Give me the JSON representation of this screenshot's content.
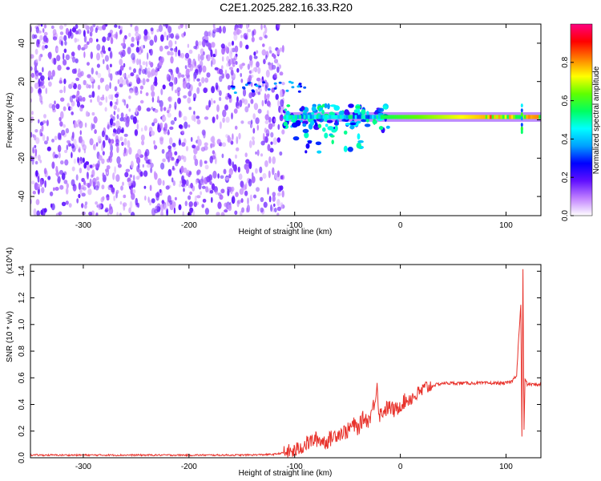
{
  "title": "C2E1.2025.282.16.33.R20",
  "chart_data": [
    {
      "type": "heatmap",
      "xlabel": "Height of straight line (km)",
      "ylabel": "Frequency (Hz)",
      "xlim": [
        -350,
        133
      ],
      "ylim": [
        -50,
        50
      ],
      "xticks": [
        -300,
        -200,
        -100,
        0,
        100
      ],
      "yticks": [
        -40,
        -20,
        0,
        20,
        40
      ],
      "colorbar": {
        "label": "Normalized spectral amplitude",
        "range": [
          0,
          1
        ],
        "ticks": [
          "0.0",
          "0.2",
          "0.4",
          "0.6",
          "0.8"
        ],
        "colors": [
          "#ffffff",
          "#c080ff",
          "#6010ff",
          "#0000ff",
          "#00a0ff",
          "#00ffff",
          "#00ff60",
          "#60ff00",
          "#ffff00",
          "#ff8000",
          "#ff0000",
          "#ff0080"
        ]
      },
      "features": {
        "noise_region_x": [
          -350,
          -110
        ],
        "noise_level": 0.15,
        "line_x": [
          -110,
          133
        ],
        "line_frequency": 1.5,
        "line_peak_amplitude": 0.9,
        "disturbance_x": [
          -80,
          -20
        ],
        "spike_x": 115
      }
    },
    {
      "type": "line",
      "xlabel": "Height of straight line (km)",
      "ylabel": "SNR (10 * v/v)",
      "yunit": "(x10^4)",
      "xlim": [
        -350,
        133
      ],
      "ylim": [
        0,
        1.45
      ],
      "xticks": [
        -300,
        -200,
        -100,
        0,
        100
      ],
      "yticks": [
        0.0,
        0.2,
        0.4,
        0.6,
        0.8,
        1.0,
        1.2,
        1.4
      ],
      "series": [
        {
          "color": "#e8312a",
          "x": [
            -350,
            -300,
            -250,
            -200,
            -150,
            -120,
            -100,
            -90,
            -80,
            -70,
            -60,
            -50,
            -45,
            -40,
            -35,
            -30,
            -25,
            -22,
            -20,
            -15,
            -10,
            -5,
            0,
            5,
            10,
            15,
            20,
            25,
            30,
            35,
            40,
            50,
            60,
            70,
            80,
            90,
            100,
            105,
            108,
            110,
            112,
            114,
            115,
            116,
            117,
            118,
            120,
            125,
            133
          ],
          "y": [
            0.02,
            0.02,
            0.02,
            0.02,
            0.02,
            0.025,
            0.05,
            0.1,
            0.14,
            0.12,
            0.18,
            0.2,
            0.25,
            0.22,
            0.3,
            0.28,
            0.4,
            0.55,
            0.32,
            0.36,
            0.38,
            0.35,
            0.4,
            0.43,
            0.45,
            0.47,
            0.5,
            0.53,
            0.54,
            0.55,
            0.56,
            0.56,
            0.56,
            0.56,
            0.56,
            0.56,
            0.56,
            0.57,
            0.6,
            0.62,
            0.9,
            1.15,
            0.15,
            1.42,
            0.2,
            0.6,
            0.55,
            0.55,
            0.55
          ]
        }
      ]
    }
  ]
}
